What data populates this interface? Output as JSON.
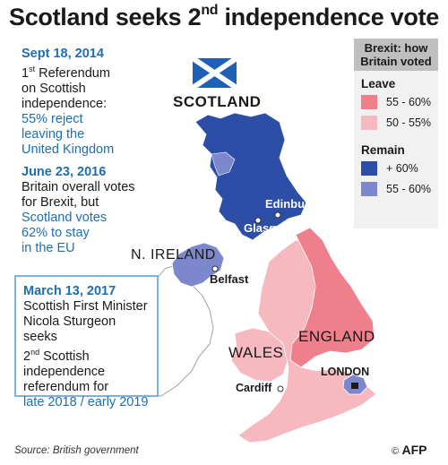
{
  "title": {
    "main": "Scotland seeks 2",
    "sup": "nd",
    "rest": " independence vote"
  },
  "timeline": [
    {
      "date": "Sept 18, 2014",
      "lines": [
        [
          "1",
          "st"
        ],
        " Referendum",
        "on Scottish",
        "independence:"
      ],
      "highlight": [
        "55% reject",
        "leaving the",
        "United Kingdom"
      ]
    },
    {
      "date": "June 23, 2016",
      "lines": [
        "Britain overall votes",
        "for Brexit, but"
      ],
      "highlight": [
        "Scotland votes",
        "62% to stay",
        "in the EU"
      ]
    }
  ],
  "box": {
    "date": "March 13, 2017",
    "line1": "Scottish First Minister",
    "line2": "Nicola Sturgeon seeks",
    "line3_num": "2",
    "line3_sup": "nd",
    "line3_rest": " Scottish",
    "line4": "independence",
    "line5": "referendum for",
    "highlight": "late 2018 / early 2019"
  },
  "legend": {
    "header": "Brexit: how Britain voted",
    "leave_label": "Leave",
    "remain_label": "Remain",
    "leave": [
      {
        "label": "55 - 60%",
        "color": "#ee7f8b"
      },
      {
        "label": "50 - 55%",
        "color": "#f6b9c0"
      }
    ],
    "remain": [
      {
        "label": "+ 60%",
        "color": "#2c4ea6"
      },
      {
        "label": "55 - 60%",
        "color": "#7d88cc"
      }
    ]
  },
  "regions": {
    "scotland": "SCOTLAND",
    "n_ireland": "N. IRELAND",
    "wales": "WALES",
    "england": "ENGLAND",
    "london": "LONDON"
  },
  "cities": [
    "Edinburgh",
    "Glasgow",
    "Belfast",
    "Cardiff"
  ],
  "source": "Source: British government",
  "credit": "AFP",
  "credit_symbol": "©"
}
